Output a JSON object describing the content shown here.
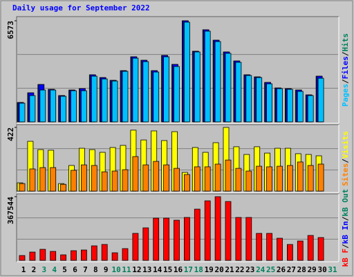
{
  "chart_data": [
    {
      "type": "bar",
      "title": "Daily usage for September 2022",
      "ylim": [
        0,
        6573
      ],
      "yticks": [
        6573
      ],
      "legend_separator": "/",
      "series": [
        {
          "name": "Hits",
          "color": "#00805c",
          "values": [
            1261,
            1891,
            2431,
            2116,
            1711,
            2071,
            2161,
            3061,
            2881,
            2701,
            3331,
            4232,
            4007,
            3331,
            4322,
            3737,
            6573,
            4592,
            5988,
            5312,
            4547,
            3962,
            3061,
            2926,
            2566,
            2206,
            2161,
            2071,
            1756,
            2971,
            null
          ]
        },
        {
          "name": "Files",
          "color": "#0000ff",
          "values": [
            1261,
            1891,
            2431,
            2116,
            1711,
            2071,
            2161,
            3061,
            2881,
            2701,
            3331,
            4232,
            4007,
            3331,
            4322,
            3737,
            6573,
            4592,
            5988,
            5312,
            4547,
            3962,
            3061,
            2926,
            2566,
            2206,
            2161,
            2071,
            1756,
            2971,
            null
          ]
        },
        {
          "name": "Pages",
          "color": "#00c0ff",
          "values": [
            1216,
            1711,
            2071,
            2071,
            1666,
            2026,
            2026,
            2971,
            2791,
            2656,
            3286,
            4142,
            3917,
            3241,
            4232,
            3602,
            6483,
            4547,
            5898,
            5222,
            4457,
            3872,
            3016,
            2881,
            2476,
            2161,
            2116,
            1981,
            1711,
            2836,
            null
          ]
        }
      ]
    },
    {
      "type": "bar",
      "ylim": [
        0,
        422
      ],
      "yticks": [
        422
      ],
      "legend_separator": "/",
      "series": [
        {
          "name": "Visits",
          "color": "#ffff00",
          "values": [
            55,
            330,
            275,
            271,
            50,
            170,
            284,
            275,
            257,
            289,
            303,
            404,
            339,
            399,
            335,
            394,
            124,
            289,
            257,
            321,
            422,
            294,
            243,
            294,
            252,
            284,
            284,
            248,
            243,
            234,
            null
          ]
        },
        {
          "name": "Sites",
          "color": "#ff8000",
          "values": [
            50,
            147,
            156,
            156,
            45,
            138,
            174,
            170,
            128,
            133,
            142,
            229,
            174,
            197,
            174,
            151,
            110,
            161,
            161,
            179,
            206,
            151,
            133,
            165,
            161,
            165,
            170,
            193,
            170,
            179,
            null
          ]
        }
      ]
    },
    {
      "type": "bar",
      "ylim": [
        0,
        367544
      ],
      "yticks": [
        367544
      ],
      "legend_separator": "/",
      "categories": [
        "1",
        "2",
        "3",
        "4",
        "5",
        "6",
        "7",
        "8",
        "9",
        "10",
        "11",
        "12",
        "13",
        "14",
        "15",
        "16",
        "17",
        "18",
        "19",
        "20",
        "21",
        "22",
        "23",
        "24",
        "25",
        "26",
        "27",
        "28",
        "29",
        "30",
        "31"
      ],
      "category_colors": [
        "#000000",
        "#000000",
        "#00805c",
        "#00805c",
        "#000000",
        "#000000",
        "#000000",
        "#000000",
        "#000000",
        "#00805c",
        "#00805c",
        "#000000",
        "#000000",
        "#000000",
        "#000000",
        "#000000",
        "#00805c",
        "#00805c",
        "#000000",
        "#000000",
        "#000000",
        "#000000",
        "#000000",
        "#00805c",
        "#00805c",
        "#000000",
        "#000000",
        "#000000",
        "#000000",
        "#000000",
        "#00805c"
      ],
      "series": [
        {
          "name": "kB Out",
          "color": "#00805c",
          "values": [
            null,
            null,
            null,
            null,
            null,
            null,
            null,
            null,
            null,
            null,
            null,
            null,
            null,
            null,
            null,
            null,
            null,
            null,
            null,
            null,
            null,
            null,
            null,
            null,
            null,
            null,
            null,
            null,
            null,
            null,
            null
          ]
        },
        {
          "name": "kB In",
          "color": "#0000ff",
          "values": [
            null,
            null,
            null,
            null,
            null,
            null,
            null,
            null,
            null,
            null,
            null,
            null,
            null,
            null,
            null,
            null,
            null,
            null,
            null,
            null,
            null,
            null,
            null,
            null,
            null,
            null,
            null,
            null,
            null,
            null,
            null
          ]
        },
        {
          "name": "kB F",
          "color": "#ff0000",
          "values": [
            27965,
            47940,
            63920,
            51935,
            31960,
            55930,
            59925,
            83895,
            91885,
            43945,
            67915,
            155806,
            187766,
            243696,
            243696,
            231711,
            247691,
            295631,
            343571,
            367544,
            339576,
            247691,
            247691,
            155806,
            155806,
            127841,
            91885,
            111861,
            143821,
            131836,
            null
          ]
        }
      ]
    }
  ]
}
